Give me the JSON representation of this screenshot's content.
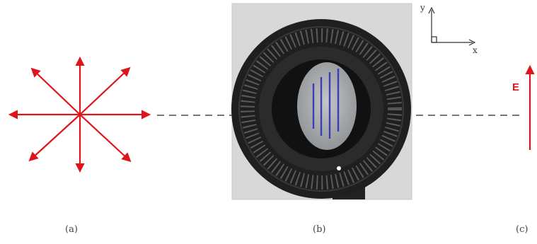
{
  "captions": {
    "a": "(a)",
    "b": "(b)",
    "c": "(c)"
  },
  "axes": {
    "y": "y",
    "x": "x"
  },
  "field_label": "E",
  "colors": {
    "arrow_red": "#e0151b",
    "dash_gray": "#777777",
    "filter_lines": "#3b3fb6",
    "photo_bg": "#d8d8d8",
    "ring_dark": "#2a2a2a"
  },
  "icons": {
    "unpolarized": "radial-arrows-icon",
    "polarizer": "polarizer-photo",
    "polarized": "vertical-arrow-icon"
  }
}
